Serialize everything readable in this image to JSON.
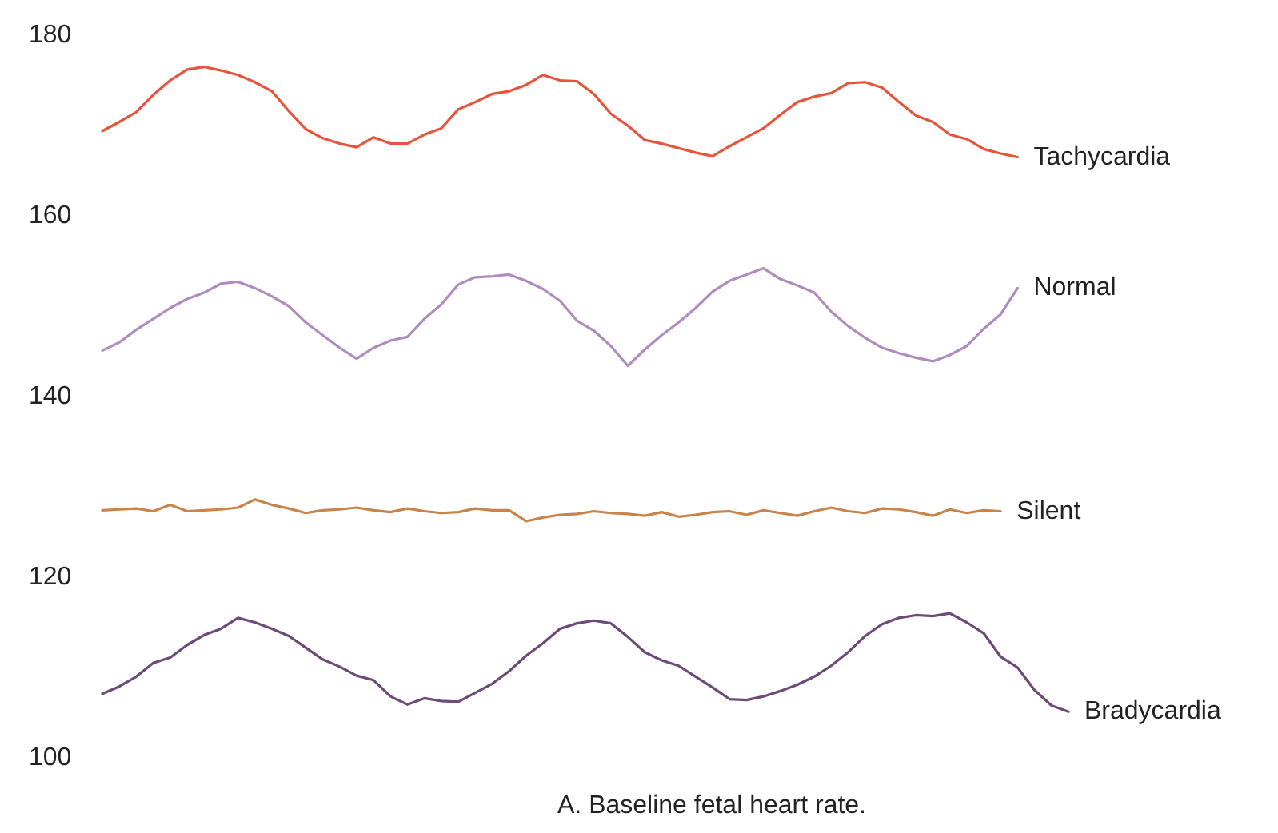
{
  "chart_data": {
    "type": "line",
    "categories": [
      null,
      null,
      null,
      null,
      null,
      null,
      null,
      null,
      null,
      null,
      null,
      null,
      null,
      null,
      null,
      null,
      null,
      null,
      null,
      null,
      null,
      null,
      null,
      null,
      null,
      null,
      null,
      null,
      null,
      null,
      null,
      null,
      null,
      null,
      null,
      null,
      null,
      null,
      null,
      null,
      null,
      null,
      null,
      null,
      null,
      null,
      null,
      null,
      null,
      null,
      null,
      null,
      null,
      null,
      null,
      null,
      null,
      null
    ],
    "ylim": [
      100,
      180
    ],
    "yticks": [
      100,
      120,
      140,
      160,
      180
    ],
    "grid": false,
    "legend": false,
    "marker": "none",
    "line_style": "solid",
    "annotations": [
      "A. Baseline fetal heart rate."
    ],
    "series": [
      {
        "name": "Tachycardia",
        "color": "#e8533a",
        "values": [
          169.4,
          170.4,
          171.5,
          173.4,
          175,
          176.2,
          176.5,
          176.1,
          175.6,
          174.8,
          173.8,
          171.6,
          169.6,
          168.6,
          168,
          167.6,
          168.7,
          168,
          168,
          169,
          169.7,
          171.8,
          172.6,
          173.5,
          173.8,
          174.5,
          175.6,
          175,
          174.9,
          173.5,
          171.3,
          170,
          168.4,
          168,
          167.5,
          167,
          166.6,
          167.7,
          168.7,
          169.7,
          171.2,
          172.6,
          173.2,
          173.6,
          174.7,
          174.8,
          174.2,
          172.6,
          171.1,
          170.4,
          169,
          168.5,
          167.4,
          166.9,
          166.5,
          null,
          null,
          null
        ]
      },
      {
        "name": "Normal",
        "color": "#b08bc0",
        "values": [
          145.1,
          146,
          147.4,
          148.6,
          149.8,
          150.8,
          151.5,
          152.5,
          152.7,
          152,
          151.1,
          150,
          148.2,
          146.8,
          145.4,
          144.2,
          145.4,
          146.2,
          146.6,
          148.6,
          150.2,
          152.4,
          153.2,
          153.3,
          153.5,
          152.8,
          151.9,
          150.6,
          148.4,
          147.3,
          145.6,
          143.4,
          145.2,
          146.8,
          148.2,
          149.8,
          151.6,
          152.8,
          153.5,
          154.2,
          153,
          152.3,
          151.5,
          149.4,
          147.8,
          146.5,
          145.4,
          144.8,
          144.3,
          143.9,
          144.6,
          145.6,
          147.5,
          149.1,
          152,
          null,
          null,
          null
        ]
      },
      {
        "name": "Silent",
        "color": "#c8844a",
        "values": [
          127.4,
          127.5,
          127.6,
          127.3,
          128,
          127.3,
          127.4,
          127.5,
          127.7,
          128.6,
          128,
          127.6,
          127.1,
          127.4,
          127.5,
          127.7,
          127.4,
          127.2,
          127.6,
          127.3,
          127.1,
          127.2,
          127.6,
          127.4,
          127.4,
          126.2,
          126.6,
          126.9,
          127,
          127.3,
          127.1,
          127,
          126.8,
          127.2,
          126.7,
          126.9,
          127.2,
          127.3,
          126.9,
          127.4,
          127.1,
          126.8,
          127.3,
          127.7,
          127.3,
          127.1,
          127.6,
          127.5,
          127.2,
          126.8,
          127.5,
          127.1,
          127.4,
          127.3,
          null,
          null,
          null,
          null
        ]
      },
      {
        "name": "Bradycardia",
        "color": "#6e4a78",
        "values": [
          107.1,
          107.9,
          109,
          110.5,
          111.1,
          112.5,
          113.6,
          114.3,
          115.5,
          115,
          114.3,
          113.5,
          112.2,
          110.9,
          110.1,
          109.1,
          108.6,
          106.8,
          105.9,
          106.6,
          106.3,
          106.2,
          107.2,
          108.2,
          109.6,
          111.3,
          112.7,
          114.3,
          114.9,
          115.2,
          114.9,
          113.4,
          111.7,
          110.8,
          110.2,
          109,
          107.8,
          106.5,
          106.4,
          106.8,
          107.4,
          108.1,
          109,
          110.2,
          111.7,
          113.5,
          114.8,
          115.5,
          115.8,
          115.7,
          116,
          115,
          113.8,
          111.2,
          110,
          107.5,
          105.8,
          105.1
        ]
      }
    ]
  }
}
